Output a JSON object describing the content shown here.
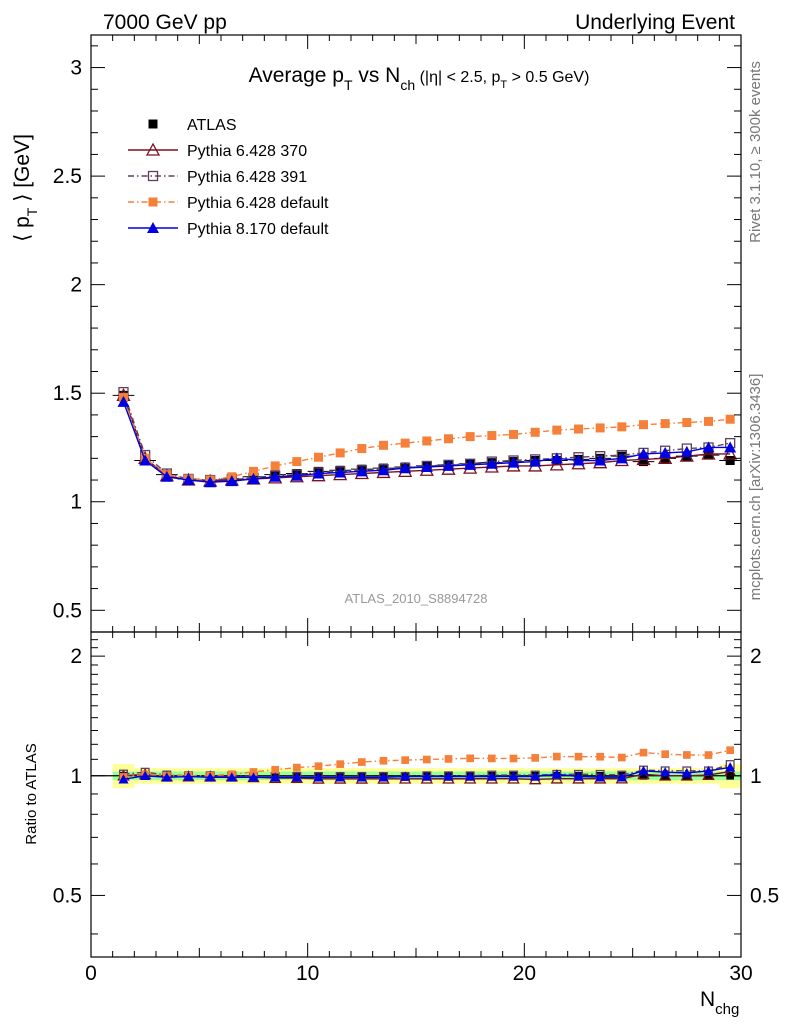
{
  "header": {
    "left": "7000 GeV pp",
    "right": "Underlying Event"
  },
  "side_text": {
    "top": "Rivet 3.1.10, ≥ 300k events",
    "bottom": "mcplots.cern.ch [arXiv:1306.3436]"
  },
  "title": {
    "p1": "Average p",
    "p1_sub": "T",
    "p2": " vs N",
    "p2_sub": "ch",
    "p3": " (|η| < 2.5, p",
    "p3_sub": "T",
    "p4": " > 0.5 GeV)"
  },
  "watermark": "ATLAS_2010_S8894728",
  "axes": {
    "ylabel_main_a": "⟨ p",
    "ylabel_main_sub": "T",
    "ylabel_main_b": " ⟩ [GeV]",
    "ylabel_ratio": "Ratio to ATLAS",
    "xlabel": "N",
    "xlabel_sub": "chg"
  },
  "chart_data": {
    "type": "line",
    "xlim": [
      0,
      30
    ],
    "main_ylim": [
      0.4,
      3.15
    ],
    "ratio_ylim": [
      0.35,
      2.3
    ],
    "x_ticks": [
      "0",
      "10",
      "20",
      "30"
    ],
    "main_y_ticks": [
      "0.5",
      "1",
      "1.5",
      "2",
      "2.5",
      "3"
    ],
    "ratio_y_ticks": [
      "0.5",
      "1",
      "2"
    ],
    "colors": {
      "atlas": "#000000",
      "p6_370": "#7a1020",
      "p6_391": "#604060",
      "p6_default": "#f5803a",
      "p8_default": "#0000e0",
      "band_inner": "#99ff99",
      "band_outer": "#ffff99"
    },
    "x": [
      1.5,
      2.5,
      3.5,
      4.5,
      5.5,
      6.5,
      7.5,
      8.5,
      9.5,
      10.5,
      11.5,
      12.5,
      13.5,
      14.5,
      15.5,
      16.5,
      17.5,
      18.5,
      19.5,
      20.5,
      21.5,
      22.5,
      23.5,
      24.5,
      25.5,
      26.5,
      27.5,
      28.5,
      29.5
    ],
    "series": [
      {
        "name": "ATLAS",
        "style": "atlas",
        "values": [
          1.49,
          1.19,
          1.125,
          1.105,
          1.1,
          1.105,
          1.115,
          1.125,
          1.13,
          1.14,
          1.145,
          1.15,
          1.155,
          1.16,
          1.165,
          1.17,
          1.175,
          1.18,
          1.185,
          1.19,
          1.19,
          1.195,
          1.2,
          1.21,
          1.185,
          1.2,
          1.21,
          1.215,
          1.19
        ]
      },
      {
        "name": "Pythia 6.428 370",
        "style": "p6_370",
        "values": [
          1.49,
          1.2,
          1.12,
          1.1,
          1.095,
          1.1,
          1.105,
          1.11,
          1.115,
          1.12,
          1.125,
          1.13,
          1.135,
          1.14,
          1.145,
          1.15,
          1.155,
          1.16,
          1.165,
          1.165,
          1.17,
          1.175,
          1.18,
          1.19,
          1.195,
          1.2,
          1.21,
          1.22,
          1.22
        ]
      },
      {
        "name": "Pythia 6.428 391",
        "style": "p6_391",
        "values": [
          1.505,
          1.215,
          1.13,
          1.105,
          1.1,
          1.105,
          1.11,
          1.12,
          1.125,
          1.135,
          1.14,
          1.145,
          1.15,
          1.155,
          1.165,
          1.17,
          1.175,
          1.185,
          1.19,
          1.195,
          1.2,
          1.205,
          1.21,
          1.215,
          1.225,
          1.235,
          1.245,
          1.25,
          1.27
        ]
      },
      {
        "name": "Pythia 6.428 default",
        "style": "p6_default",
        "values": [
          1.48,
          1.2,
          1.125,
          1.105,
          1.1,
          1.115,
          1.14,
          1.165,
          1.185,
          1.205,
          1.225,
          1.245,
          1.26,
          1.27,
          1.28,
          1.29,
          1.3,
          1.305,
          1.31,
          1.32,
          1.33,
          1.335,
          1.34,
          1.345,
          1.355,
          1.36,
          1.365,
          1.37,
          1.38
        ]
      },
      {
        "name": "Pythia 8.170 default",
        "style": "p8_default",
        "values": [
          1.46,
          1.19,
          1.115,
          1.1,
          1.09,
          1.095,
          1.105,
          1.115,
          1.12,
          1.13,
          1.135,
          1.14,
          1.145,
          1.155,
          1.16,
          1.165,
          1.17,
          1.175,
          1.18,
          1.185,
          1.2,
          1.19,
          1.19,
          1.2,
          1.22,
          1.225,
          1.23,
          1.25,
          1.25
        ]
      }
    ],
    "legend": [
      {
        "label": "ATLAS",
        "style": "atlas"
      },
      {
        "label": "Pythia 6.428 370",
        "style": "p6_370"
      },
      {
        "label": "Pythia 6.428 391",
        "style": "p6_391"
      },
      {
        "label": "Pythia 6.428 default",
        "style": "p6_default"
      },
      {
        "label": "Pythia 8.170 default",
        "style": "p8_default"
      }
    ],
    "legend_placement": "top-left",
    "grid": false
  }
}
